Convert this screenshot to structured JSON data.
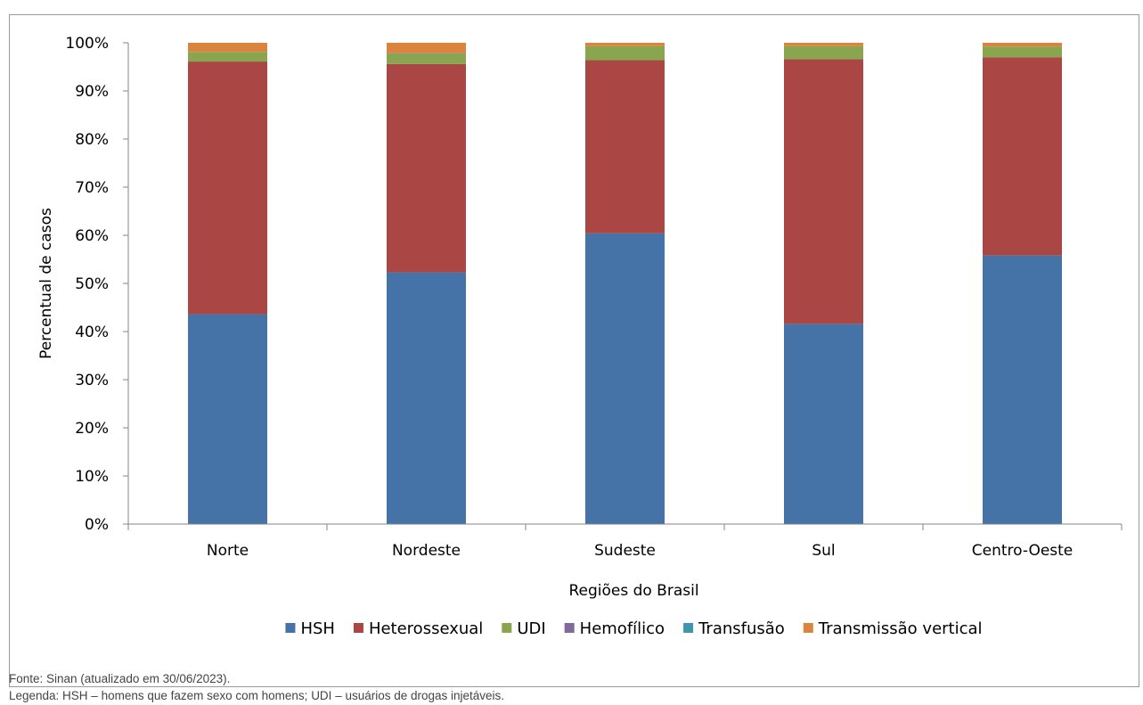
{
  "chart_data": {
    "type": "bar",
    "stacked": true,
    "categories": [
      "Norte",
      "Nordeste",
      "Sudeste",
      "Sul",
      "Centro-Oeste"
    ],
    "series": [
      {
        "name": "HSH",
        "color": "#4572a7",
        "values": [
          43.6,
          52.3,
          60.4,
          41.6,
          55.8
        ]
      },
      {
        "name": "Heterossexual",
        "color": "#aa4643",
        "values": [
          52.5,
          43.3,
          36.0,
          55.0,
          41.2
        ]
      },
      {
        "name": "UDI",
        "color": "#89a54e",
        "values": [
          2.0,
          2.1,
          2.9,
          2.7,
          2.2
        ]
      },
      {
        "name": "Hemofílico",
        "color": "#80699b",
        "values": [
          0.0,
          0.0,
          0.0,
          0.0,
          0.0
        ]
      },
      {
        "name": "Transfusão",
        "color": "#3d96ae",
        "values": [
          0.0,
          0.1,
          0.0,
          0.0,
          0.0
        ]
      },
      {
        "name": "Transmissão vertical",
        "color": "#db843d",
        "values": [
          1.9,
          2.2,
          0.7,
          0.7,
          0.8
        ]
      }
    ],
    "yticks": [
      "0%",
      "10%",
      "20%",
      "30%",
      "40%",
      "50%",
      "60%",
      "70%",
      "80%",
      "90%",
      "100%"
    ],
    "xlabel": "Regiões do Brasil",
    "ylabel": "Percentual de casos",
    "ylim": [
      0,
      100
    ],
    "grid": false,
    "legend_position": "bottom"
  },
  "notes": {
    "source": "Fonte: Sinan (atualizado em 30/06/2023).",
    "legend": "Legenda: HSH – homens que fazem sexo com homens; UDI – usuários de drogas injetáveis."
  }
}
